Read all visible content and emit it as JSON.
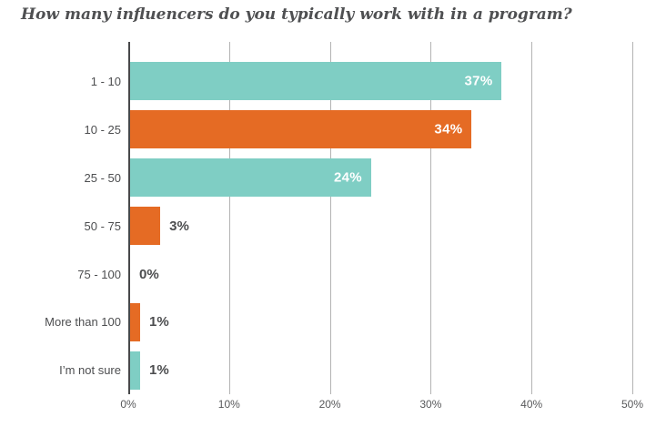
{
  "title": "How many influencers do you typically work with in a program?",
  "chart_data": {
    "type": "bar",
    "orientation": "horizontal",
    "title": "How many influencers do you typically work with in a program?",
    "categories": [
      "1 - 10",
      "10 - 25",
      "25 - 50",
      "50 - 75",
      "75 - 100",
      "More than 100",
      "I’m not sure"
    ],
    "values": [
      37,
      34,
      24,
      3,
      0,
      1,
      1
    ],
    "value_labels": [
      "37%",
      "34%",
      "24%",
      "3%",
      "0%",
      "1%",
      "1%"
    ],
    "bar_colors": [
      "teal",
      "orange",
      "teal",
      "orange",
      "teal",
      "orange",
      "teal"
    ],
    "x_ticks": [
      "0%",
      "10%",
      "20%",
      "30%",
      "40%",
      "50%"
    ],
    "xlim": [
      0,
      50
    ],
    "inside_label_threshold": 10,
    "grid": true,
    "legend": "none",
    "colors": {
      "teal": "#7FCEC4",
      "orange": "#E56B24",
      "gridline": "#B3B3B3",
      "axis": "#47484A",
      "category_text": "#4D4E50",
      "value_text_inside": "#FFFFFF",
      "value_text_outside": "#4C4D4F",
      "title_text": "#4F5052",
      "background": "#FFFFFF"
    }
  }
}
